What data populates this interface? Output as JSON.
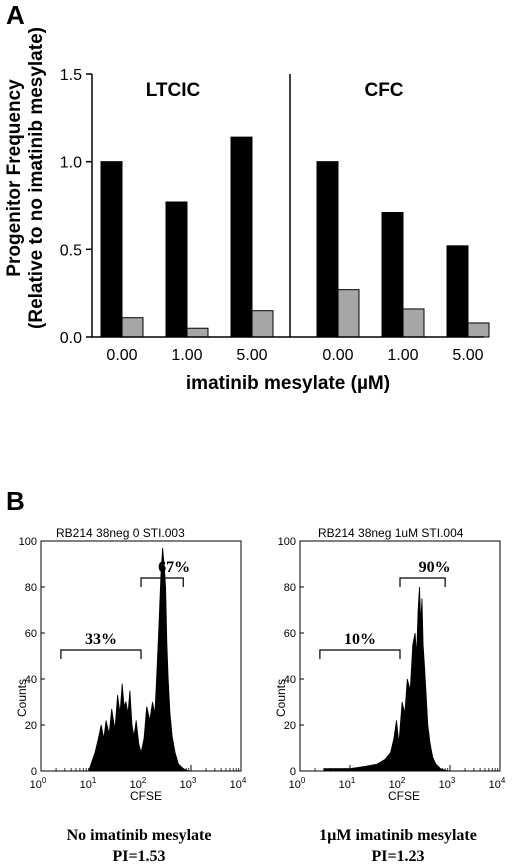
{
  "panel_a": {
    "letter": "A",
    "y_label_line1": "Progenitor Frequency",
    "y_label_line2": "(Relative to no imatinib mesylate)",
    "x_label": "imatinib mesylate (µM)",
    "yticks": [
      "0.0",
      "0.5",
      "1.0",
      "1.5"
    ]
  },
  "panel_b": {
    "letter": "B",
    "hist_left": {
      "file_label": "RB214 38neg 0 STI.003",
      "pct_low": "33%",
      "pct_high": "67%",
      "y_label": "Counts",
      "x_label": "CFSE",
      "caption_line1": "No imatinib mesylate",
      "caption_line2": "PI=1.53"
    },
    "hist_right": {
      "file_label": "RB214 38neg 1uM STI.004",
      "pct_low": "10%",
      "pct_high": "90%",
      "y_label": "Counts",
      "x_label": "CFSE",
      "caption_line1": "1µM imatinib mesylate",
      "caption_line2": "PI=1.23"
    },
    "yticks": [
      "0",
      "20",
      "40",
      "60",
      "80",
      "100"
    ],
    "xticks": [
      {
        "base": "10",
        "exp": "0"
      },
      {
        "base": "10",
        "exp": "1"
      },
      {
        "base": "10",
        "exp": "2"
      },
      {
        "base": "10",
        "exp": "3"
      },
      {
        "base": "10",
        "exp": "4"
      }
    ]
  },
  "chart_data": [
    {
      "type": "bar",
      "groups": [
        "LTCIC",
        "CFC"
      ],
      "categories": [
        "0.00",
        "1.00",
        "5.00"
      ],
      "series": [
        {
          "color": "#000000",
          "values": {
            "LTCIC": [
              1.0,
              0.77,
              1.14
            ],
            "CFC": [
              1.0,
              0.71,
              0.52
            ]
          }
        },
        {
          "color": "#a6a6a6",
          "values": {
            "LTCIC": [
              0.11,
              0.05,
              0.15
            ],
            "CFC": [
              0.27,
              0.16,
              0.08
            ]
          }
        }
      ],
      "ylabel": "Progenitor Frequency (Relative to no imatinib mesylate)",
      "xlabel": "imatinib mesylate (µM)",
      "ylim": [
        0,
        1.5
      ]
    },
    {
      "type": "area",
      "title": "RB214 38neg 0 STI.003",
      "xlabel": "CFSE",
      "ylabel": "Counts",
      "x_scale": "log",
      "xlim": [
        1,
        10000
      ],
      "ylim": [
        0,
        100
      ],
      "x": [
        9,
        10,
        12,
        14,
        16,
        18,
        20,
        23,
        26,
        30,
        34,
        38,
        42,
        46,
        50,
        55,
        60,
        66,
        72,
        80,
        90,
        100,
        115,
        130,
        150,
        170,
        190,
        210,
        230,
        250,
        270,
        290,
        310,
        330,
        350,
        380,
        420,
        480,
        560,
        700,
        900
      ],
      "y": [
        0,
        3,
        8,
        14,
        20,
        14,
        22,
        16,
        27,
        18,
        33,
        25,
        38,
        28,
        30,
        25,
        35,
        20,
        15,
        22,
        12,
        8,
        14,
        28,
        22,
        30,
        25,
        45,
        65,
        85,
        97,
        90,
        80,
        55,
        40,
        25,
        15,
        8,
        3,
        1,
        0
      ],
      "gates": [
        {
          "label": "33%",
          "range": [
            2.5,
            100
          ]
        },
        {
          "label": "67%",
          "range": [
            100,
            700
          ]
        }
      ],
      "caption": "No imatinib mesylate",
      "pi": "PI=1.53"
    },
    {
      "type": "area",
      "title": "RB214 38neg 1uM STI.004",
      "xlabel": "CFSE",
      "ylabel": "Counts",
      "x_scale": "log",
      "xlim": [
        1,
        10000
      ],
      "ylim": [
        0,
        100
      ],
      "x": [
        3,
        5,
        10,
        20,
        35,
        50,
        65,
        75,
        85,
        95,
        110,
        125,
        140,
        160,
        180,
        200,
        215,
        230,
        245,
        260,
        275,
        290,
        310,
        330,
        360,
        400,
        450,
        520,
        650,
        900
      ],
      "y": [
        1,
        1,
        1,
        2,
        3,
        5,
        8,
        14,
        22,
        12,
        30,
        25,
        40,
        35,
        55,
        60,
        50,
        70,
        80,
        65,
        75,
        55,
        45,
        35,
        20,
        12,
        6,
        3,
        1,
        0
      ],
      "gates": [
        {
          "label": "10%",
          "range": [
            2.5,
            100
          ]
        },
        {
          "label": "90%",
          "range": [
            100,
            800
          ]
        }
      ],
      "caption": "1µM imatinib mesylate",
      "pi": "PI=1.23"
    }
  ]
}
